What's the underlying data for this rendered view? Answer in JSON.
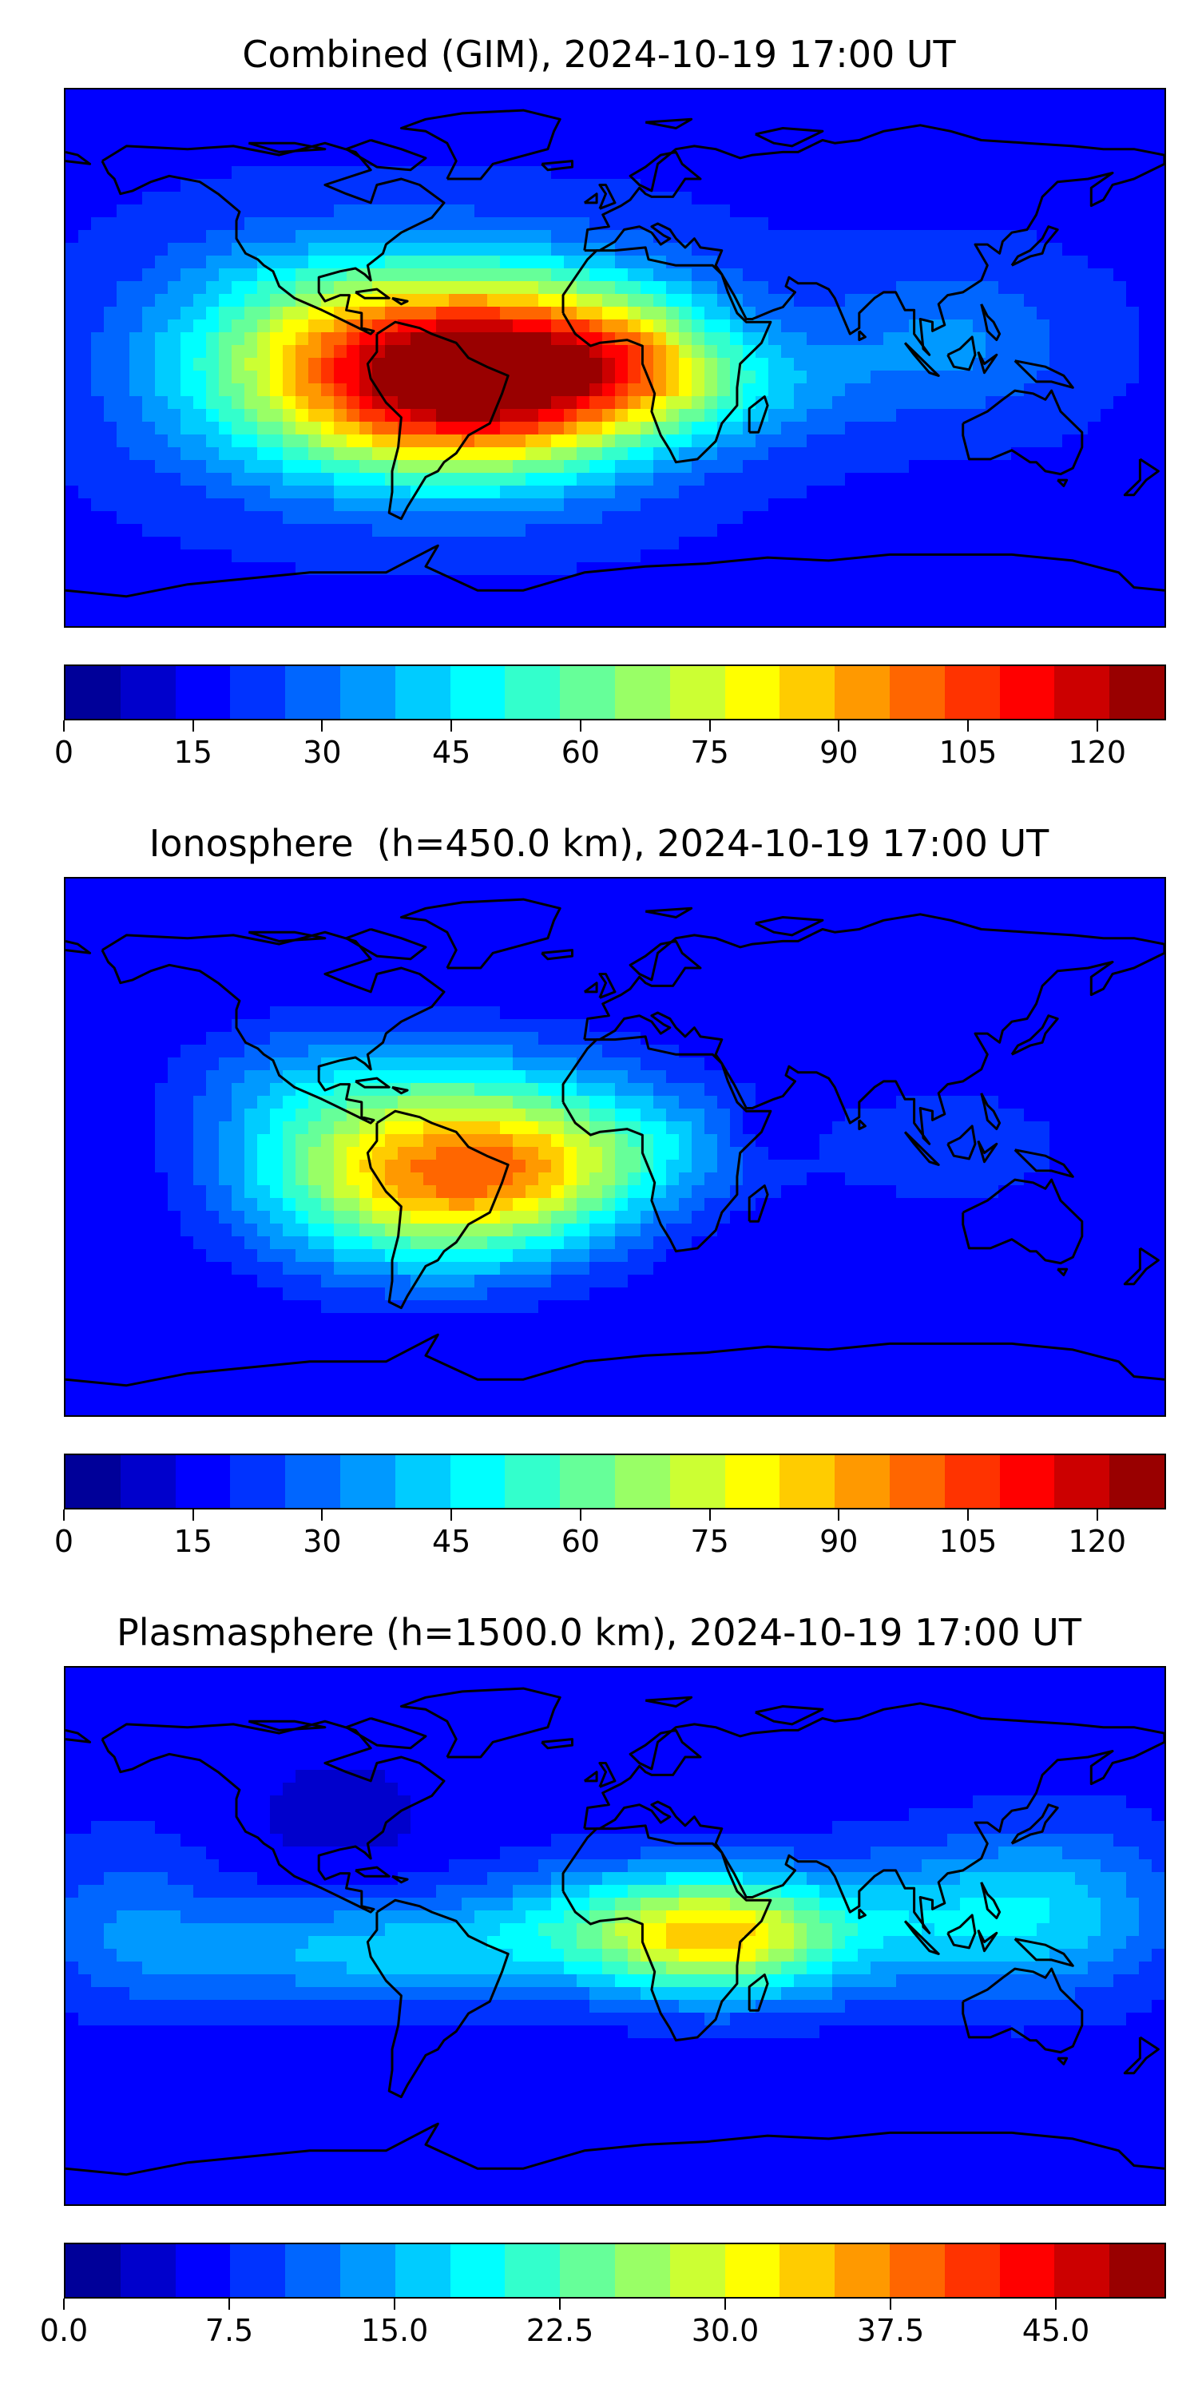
{
  "panels": [
    {
      "title": "Combined (GIM), 2024-10-19 17:00 UT",
      "field": "combined",
      "colorbar": {
        "min": 0,
        "max": 128,
        "ticks": [
          "0",
          "15",
          "30",
          "45",
          "60",
          "75",
          "90",
          "105",
          "120"
        ],
        "tick_values": [
          0,
          15,
          30,
          45,
          60,
          75,
          90,
          105,
          120
        ]
      }
    },
    {
      "title": "Ionosphere  (h=450.0 km), 2024-10-19 17:00 UT",
      "field": "ionosphere",
      "colorbar": {
        "min": 0,
        "max": 128,
        "ticks": [
          "0",
          "15",
          "30",
          "45",
          "60",
          "75",
          "90",
          "105",
          "120"
        ],
        "tick_values": [
          0,
          15,
          30,
          45,
          60,
          75,
          90,
          105,
          120
        ]
      }
    },
    {
      "title": "Plasmasphere (h=1500.0 km), 2024-10-19 17:00 UT",
      "field": "plasmasphere",
      "colorbar": {
        "min": 0,
        "max": 50,
        "ticks": [
          "0.0",
          "7.5",
          "15.0",
          "22.5",
          "30.0",
          "37.5",
          "45.0"
        ],
        "tick_values": [
          0,
          7.5,
          15,
          22.5,
          30,
          37.5,
          45
        ]
      }
    }
  ],
  "colormap": "jet",
  "colormap_steps": 20
}
